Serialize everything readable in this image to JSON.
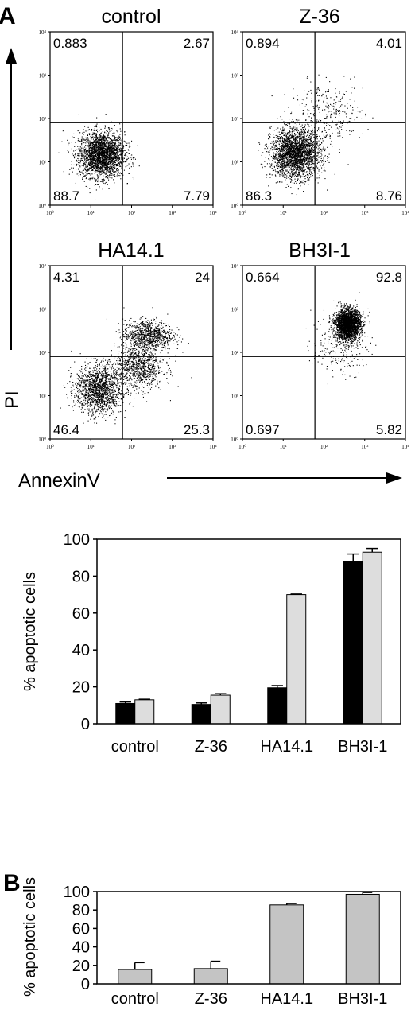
{
  "panel_a_letter": "A",
  "panel_b_letter": "B",
  "flow_axis_x": "AnnexinV",
  "flow_axis_y": "PI",
  "flow_tick_labels": [
    "10⁰",
    "10¹",
    "10²",
    "10³",
    "10⁴"
  ],
  "chart_data": [
    {
      "type": "scatter",
      "title": "control",
      "xlabel": "AnnexinV",
      "ylabel": "PI",
      "xscale": "log",
      "yscale": "log",
      "xlim": [
        1,
        10000
      ],
      "ylim": [
        1,
        10000
      ],
      "gate": {
        "x": 60,
        "y": 80
      },
      "quadrants": {
        "upper_left": "0.883",
        "upper_right": "2.67",
        "lower_left": "88.7",
        "lower_right": "7.79"
      },
      "clusters": [
        {
          "x": 18,
          "y": 15,
          "spread": [
            0.28,
            0.26
          ],
          "n": 2600
        }
      ]
    },
    {
      "type": "scatter",
      "title": "Z-36",
      "xlabel": "AnnexinV",
      "ylabel": "PI",
      "xscale": "log",
      "yscale": "log",
      "xlim": [
        1,
        10000
      ],
      "ylim": [
        1,
        10000
      ],
      "gate": {
        "x": 60,
        "y": 80
      },
      "quadrants": {
        "upper_left": "0.894",
        "upper_right": "4.01",
        "lower_left": "86.3",
        "lower_right": "8.76"
      },
      "clusters": [
        {
          "x": 20,
          "y": 16,
          "spread": [
            0.3,
            0.28
          ],
          "n": 2500
        },
        {
          "x": 120,
          "y": 130,
          "spread": [
            0.45,
            0.35
          ],
          "n": 300
        }
      ]
    },
    {
      "type": "scatter",
      "title": "HA14.1",
      "xlabel": "AnnexinV",
      "ylabel": "PI",
      "xscale": "log",
      "yscale": "log",
      "xlim": [
        1,
        10000
      ],
      "ylim": [
        1,
        10000
      ],
      "gate": {
        "x": 60,
        "y": 80
      },
      "quadrants": {
        "upper_left": "4.31",
        "upper_right": "24",
        "lower_left": "46.4",
        "lower_right": "25.3"
      },
      "clusters": [
        {
          "x": 15,
          "y": 14,
          "spread": [
            0.28,
            0.28
          ],
          "n": 1500
        },
        {
          "x": 250,
          "y": 250,
          "spread": [
            0.3,
            0.18
          ],
          "n": 900
        },
        {
          "x": 150,
          "y": 45,
          "spread": [
            0.3,
            0.25
          ],
          "n": 900
        }
      ]
    },
    {
      "type": "scatter",
      "title": "BH3I-1",
      "xlabel": "AnnexinV",
      "ylabel": "PI",
      "xscale": "log",
      "yscale": "log",
      "xlim": [
        1,
        10000
      ],
      "ylim": [
        1,
        10000
      ],
      "gate": {
        "x": 60,
        "y": 80
      },
      "quadrants": {
        "upper_left": "0.664",
        "upper_right": "92.8",
        "lower_left": "0.697",
        "lower_right": "5.82"
      },
      "clusters": [
        {
          "x": 380,
          "y": 450,
          "spread": [
            0.15,
            0.17
          ],
          "n": 2600
        },
        {
          "x": 250,
          "y": 150,
          "spread": [
            0.35,
            0.35
          ],
          "n": 250
        }
      ]
    },
    {
      "type": "bar",
      "ylabel": "% apoptotic cells",
      "ylim": [
        0,
        100
      ],
      "yticks": [
        0,
        20,
        40,
        60,
        80,
        100
      ],
      "categories": [
        "control",
        "Z-36",
        "HA14.1",
        "BH3I-1"
      ],
      "series": [
        {
          "color": "#000000",
          "values": [
            11,
            10.5,
            19.5,
            88
          ],
          "errors": [
            0.8,
            0.8,
            1.2,
            4
          ]
        },
        {
          "color": "#dddddd",
          "values": [
            13,
            15.5,
            70,
            93
          ],
          "errors": [
            0.3,
            0.8,
            0.3,
            2
          ]
        }
      ]
    },
    {
      "type": "bar",
      "ylabel": "% apoptotic cells",
      "ylim": [
        0,
        100
      ],
      "yticks": [
        0,
        20,
        40,
        60,
        80,
        100
      ],
      "categories": [
        "control",
        "Z-36",
        "HA14.1",
        "BH3I-1"
      ],
      "series": [
        {
          "color": "#c4c4c4",
          "values": [
            15.5,
            16.5,
            85.5,
            97
          ],
          "errors": [
            7.5,
            8,
            1.5,
            2
          ]
        }
      ]
    }
  ]
}
